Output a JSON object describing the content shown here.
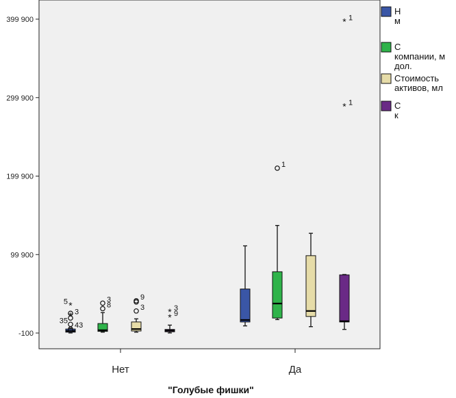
{
  "chart_data": {
    "type": "boxplot",
    "xlabel": "\"Голубые фишки\"",
    "ylabel": "",
    "ylim": [
      -100,
      420000
    ],
    "yticks": [
      -100,
      99900,
      199900,
      299900,
      399900
    ],
    "ytick_labels": [
      "-100",
      "99 900",
      "199 900",
      "299 900",
      "399 900"
    ],
    "categories": [
      "Нет",
      "Да"
    ],
    "grid": false,
    "legend_position": "right (cut off)",
    "series": [
      {
        "legend_label": "Н\nм",
        "color": "#3a56a6",
        "boxes": [
          {
            "min": 0,
            "q1": 1000,
            "median": 2500,
            "q3": 5000,
            "max": 6000,
            "outliers": [
              {
                "value": 22000,
                "kind": "star",
                "label": "3"
              },
              {
                "value": 35000,
                "kind": "star",
                "label": "5"
              },
              {
                "value": 25000,
                "kind": "circle",
                "label": ""
              },
              {
                "value": 19000,
                "kind": "circle",
                "label": ""
              },
              {
                "value": 11000,
                "kind": "circle",
                "label": "35"
              },
              {
                "value": 5000,
                "kind": "circle",
                "label": "43"
              }
            ]
          },
          {
            "min": 9000,
            "q1": 14000,
            "median": 16500,
            "q3": 56000,
            "max": 111000,
            "outliers": []
          }
        ]
      },
      {
        "legend_label": "С\nкомпании, м\nдол.",
        "color": "#2fb34a",
        "boxes": [
          {
            "min": 1000,
            "q1": 2000,
            "median": 3500,
            "q3": 12000,
            "max": 26000,
            "outliers": [
              {
                "value": 38000,
                "kind": "circle",
                "label": "3"
              },
              {
                "value": 31000,
                "kind": "circle",
                "label": "8"
              }
            ]
          },
          {
            "min": 17000,
            "q1": 19000,
            "median": 37500,
            "q3": 78000,
            "max": 137000,
            "outliers": [
              {
                "value": 210000,
                "kind": "circle",
                "label": "1"
              }
            ]
          }
        ]
      },
      {
        "legend_label": "Стоимость\nактивов, мл",
        "color": "#e6dca8",
        "boxes": [
          {
            "min": 1000,
            "q1": 2500,
            "median": 5000,
            "q3": 14000,
            "max": 18000,
            "outliers": [
              {
                "value": 41000,
                "kind": "circle",
                "label": "9"
              },
              {
                "value": 39500,
                "kind": "circle",
                "label": ""
              },
              {
                "value": 28000,
                "kind": "circle",
                "label": "3"
              }
            ]
          },
          {
            "min": 8000,
            "q1": 21000,
            "median": 28000,
            "q3": 98500,
            "max": 127000,
            "outliers": []
          }
        ]
      },
      {
        "legend_label": "С\nк",
        "color": "#6a2a86",
        "boxes": [
          {
            "min": 0,
            "q1": 1500,
            "median": 3000,
            "q3": 4500,
            "max": 10000,
            "outliers": [
              {
                "value": 27000,
                "kind": "star",
                "label": "3"
              },
              {
                "value": 20000,
                "kind": "star",
                "label": "9"
              }
            ]
          },
          {
            "min": 4500,
            "q1": 14000,
            "median": 15000,
            "q3": 74000,
            "max": 74500,
            "outliers": [
              {
                "value": 289000,
                "kind": "star",
                "label": "1"
              },
              {
                "value": 397000,
                "kind": "star",
                "label": "1"
              }
            ]
          }
        ]
      }
    ]
  }
}
